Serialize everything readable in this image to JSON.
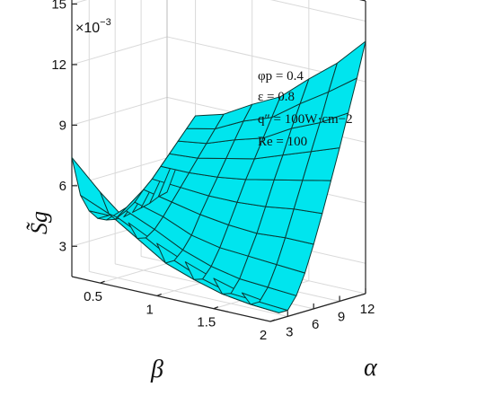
{
  "chart_data": {
    "type": "surface",
    "x_axis": {
      "label": "α",
      "ticks": [
        "3",
        "6",
        "9",
        "12"
      ],
      "range": [
        1,
        12
      ]
    },
    "y_axis": {
      "label": "β",
      "ticks": [
        "0.5",
        "1",
        "1.5",
        "2"
      ],
      "range": [
        0.25,
        2
      ]
    },
    "z_axis": {
      "label": "S̃g",
      "ticks": [
        "3",
        "6",
        "9",
        "12",
        "15"
      ],
      "range": [
        1.5,
        16
      ],
      "multiplier": "×10",
      "multiplier_exp": "−3"
    },
    "annotations": [
      "φp = 0.4",
      "ε = 0.8",
      "q″ = 100W·cm−2",
      "Re = 100"
    ],
    "surface_color": "#00e5ee",
    "mesh_color": "#0a3a36",
    "grid": true,
    "alpha_values": [
      1,
      2,
      3,
      4,
      5,
      6,
      7,
      8,
      9,
      10,
      11,
      12
    ],
    "beta_values": [
      0.25,
      0.5,
      0.75,
      1.0,
      1.25,
      1.5,
      1.75,
      2.0
    ],
    "z_values": [
      [
        7.4,
        5.4,
        4.5,
        4.0,
        3.8,
        3.7,
        3.7,
        3.8,
        3.9,
        4.0,
        4.2,
        4.3
      ],
      [
        6.0,
        4.8,
        4.5,
        4.7,
        5.0,
        5.5,
        5.9,
        6.4,
        6.9,
        7.4,
        7.9,
        8.4
      ],
      [
        4.8,
        3.9,
        3.8,
        4.1,
        4.6,
        5.2,
        5.8,
        6.4,
        7.0,
        7.6,
        8.2,
        8.8
      ],
      [
        4.1,
        3.0,
        3.0,
        3.4,
        4.0,
        4.9,
        5.7,
        6.5,
        7.3,
        8.1,
        8.9,
        9.6
      ],
      [
        3.5,
        2.5,
        2.4,
        2.9,
        3.7,
        4.7,
        5.7,
        6.7,
        7.6,
        8.5,
        9.4,
        10.3
      ],
      [
        3.0,
        2.1,
        2.0,
        2.6,
        3.6,
        4.6,
        5.8,
        7.0,
        8.1,
        9.3,
        10.4,
        11.5
      ],
      [
        2.6,
        1.9,
        1.9,
        2.5,
        3.5,
        4.7,
        6.0,
        7.3,
        8.6,
        9.9,
        11.3,
        12.6
      ],
      [
        2.4,
        1.8,
        1.8,
        2.4,
        3.4,
        4.7,
        6.1,
        7.6,
        9.1,
        10.7,
        12.3,
        14.0
      ]
    ]
  }
}
